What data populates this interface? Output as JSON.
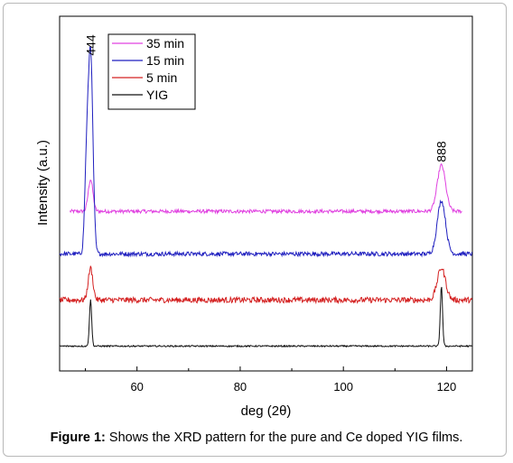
{
  "caption": {
    "label": "Figure 1:",
    "text": "Shows the XRD pattern for the pure and Ce doped YIG films."
  },
  "chart_data": {
    "type": "line",
    "title": "",
    "xlabel": "deg (2θ)",
    "ylabel": "Intensity (a.u.)",
    "xlim": [
      45,
      125
    ],
    "xticks": [
      60,
      80,
      100,
      120
    ],
    "ylim": [
      0,
      100
    ],
    "y_tick_labels": false,
    "grid": false,
    "legend": {
      "placement": "top-left"
    },
    "annotations": [
      {
        "text": "444",
        "x": 51,
        "rotated": true
      },
      {
        "text": "888",
        "x": 119,
        "rotated": true
      }
    ],
    "peaks": [
      51,
      119
    ],
    "series": [
      {
        "name": "35 min",
        "color": "#e040e0",
        "baseline": 45,
        "range": [
          47,
          123
        ],
        "peak_heights": [
          9,
          13
        ],
        "noise": 0.5
      },
      {
        "name": "15 min",
        "color": "#1f1fbf",
        "baseline": 33,
        "range": [
          45,
          125
        ],
        "peak_heights": [
          57,
          15
        ],
        "noise": 0.6
      },
      {
        "name": "5 min",
        "color": "#d42020",
        "baseline": 20,
        "range": [
          45,
          125
        ],
        "peak_heights": [
          9,
          9
        ],
        "noise": 0.8
      },
      {
        "name": "YIG",
        "color": "#111111",
        "baseline": 7,
        "range": [
          45,
          125
        ],
        "peak_heights": [
          13,
          17
        ],
        "noise": 0.2
      }
    ]
  }
}
